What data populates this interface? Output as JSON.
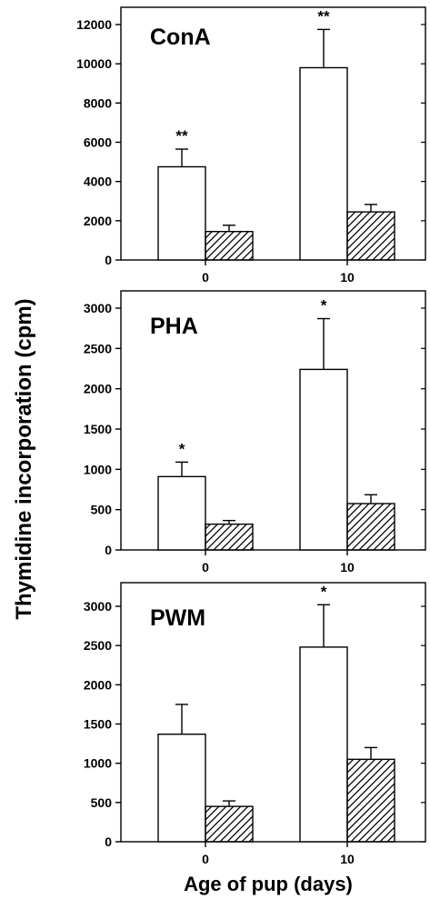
{
  "ylabel": "Thymidine incorporation (cpm)",
  "xlabel": "Age of pup (days)",
  "chart_data": [
    {
      "type": "bar",
      "title": "ConA",
      "categories": [
        "0",
        "10"
      ],
      "ylim": [
        0,
        12000
      ],
      "yticks": [
        "0",
        "2000",
        "4000",
        "6000",
        "8000",
        "10000",
        "12000"
      ],
      "series": [
        {
          "fill": "open",
          "values": [
            4750,
            9800
          ],
          "errors": [
            900,
            1950
          ]
        },
        {
          "fill": "hatched",
          "values": [
            1450,
            2450
          ],
          "errors": [
            320,
            380
          ]
        }
      ],
      "significance": [
        "**",
        "**"
      ]
    },
    {
      "type": "bar",
      "title": "PHA",
      "categories": [
        "0",
        "10"
      ],
      "ylim": [
        0,
        3000
      ],
      "yticks": [
        "0",
        "500",
        "1000",
        "1500",
        "2000",
        "2500",
        "3000"
      ],
      "series": [
        {
          "fill": "open",
          "values": [
            910,
            2240
          ],
          "errors": [
            180,
            630
          ]
        },
        {
          "fill": "hatched",
          "values": [
            320,
            575
          ],
          "errors": [
            45,
            110
          ]
        }
      ],
      "significance": [
        "*",
        "*"
      ]
    },
    {
      "type": "bar",
      "title": "PWM",
      "categories": [
        "0",
        "10"
      ],
      "ylim": [
        0,
        3000
      ],
      "yticks": [
        "0",
        "500",
        "1000",
        "1500",
        "2000",
        "2500",
        "3000"
      ],
      "series": [
        {
          "fill": "open",
          "values": [
            1370,
            2480
          ],
          "errors": [
            380,
            540
          ]
        },
        {
          "fill": "hatched",
          "values": [
            450,
            1050
          ],
          "errors": [
            70,
            150
          ]
        }
      ],
      "significance": [
        "",
        "*"
      ]
    }
  ]
}
